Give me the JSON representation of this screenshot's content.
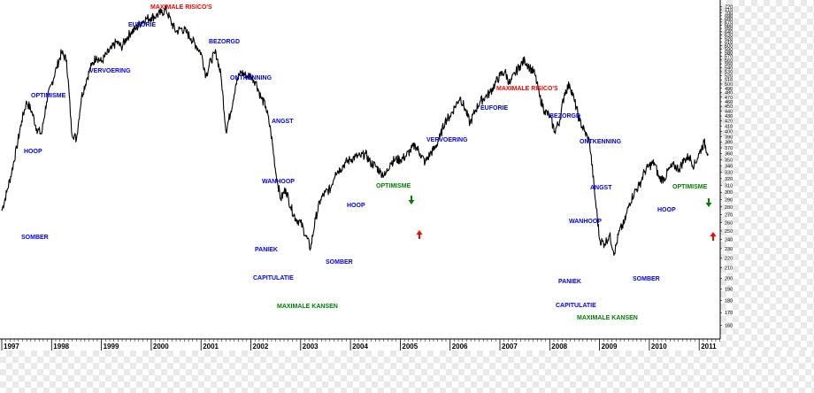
{
  "chart_data": {
    "type": "line",
    "x_axis_years": [
      "1997",
      "1998",
      "1999",
      "2000",
      "2001",
      "2002",
      "2003",
      "2004",
      "2005",
      "2006",
      "2007",
      "2008",
      "2009",
      "2010",
      "2011"
    ],
    "y_ticks": [
      160,
      170,
      180,
      190,
      200,
      210,
      220,
      230,
      240,
      250,
      260,
      270,
      280,
      290,
      300,
      310,
      320,
      330,
      340,
      350,
      360,
      370,
      380,
      390,
      400,
      410,
      420,
      430,
      440,
      450,
      460,
      470,
      480,
      490,
      500,
      510,
      520,
      530,
      540,
      550,
      560,
      570,
      580,
      590,
      600,
      610,
      620,
      630,
      640,
      650,
      660,
      670,
      680,
      690,
      700,
      710,
      720
    ],
    "ylim": [
      152,
      725
    ],
    "scale": "log",
    "series": [
      {
        "x": [
          1997.0,
          1997.1,
          1997.2,
          1997.3,
          1997.4,
          1997.5,
          1997.6,
          1997.7,
          1997.8,
          1997.9,
          1998.0,
          1998.1,
          1998.2,
          1998.3,
          1998.4,
          1998.5,
          1998.6,
          1998.7,
          1998.8,
          1998.9,
          1999.0,
          1999.1,
          1999.2,
          1999.3,
          1999.4,
          1999.5,
          1999.6,
          1999.7,
          1999.8,
          1999.9,
          2000.0,
          2000.1,
          2000.2,
          2000.3,
          2000.4,
          2000.5,
          2000.6,
          2000.7,
          2000.8,
          2000.9,
          2001.0,
          2001.1,
          2001.2,
          2001.3,
          2001.4,
          2001.5,
          2001.6,
          2001.7,
          2001.8,
          2001.9,
          2002.0,
          2002.1,
          2002.2,
          2002.3,
          2002.4,
          2002.5,
          2002.6,
          2002.7,
          2002.8,
          2002.9,
          2003.0,
          2003.1,
          2003.2,
          2003.3,
          2003.4,
          2003.5,
          2003.6,
          2003.7,
          2003.8,
          2003.9,
          2004.0,
          2004.1,
          2004.2,
          2004.3,
          2004.4,
          2004.5,
          2004.6,
          2004.7,
          2004.8,
          2004.9,
          2005.0,
          2005.1,
          2005.2,
          2005.3,
          2005.4,
          2005.5,
          2005.6,
          2005.7,
          2005.8,
          2005.9,
          2006.0,
          2006.1,
          2006.2,
          2006.3,
          2006.4,
          2006.5,
          2006.6,
          2006.7,
          2006.8,
          2006.9,
          2007.0,
          2007.1,
          2007.2,
          2007.3,
          2007.4,
          2007.5,
          2007.6,
          2007.7,
          2007.8,
          2007.9,
          2008.0,
          2008.1,
          2008.2,
          2008.3,
          2008.4,
          2008.5,
          2008.6,
          2008.7,
          2008.8,
          2008.9,
          2009.0,
          2009.1,
          2009.2,
          2009.3,
          2009.4,
          2009.5,
          2009.6,
          2009.7,
          2009.8,
          2009.9,
          2010.0,
          2010.1,
          2010.2,
          2010.3,
          2010.4,
          2010.5,
          2010.6,
          2010.7,
          2010.8,
          2010.9,
          2011.0,
          2011.1,
          2011.18
        ],
        "y": [
          275,
          300,
          330,
          370,
          420,
          460,
          440,
          405,
          395,
          460,
          500,
          540,
          580,
          560,
          400,
          385,
          470,
          510,
          545,
          570,
          555,
          575,
          590,
          610,
          595,
          620,
          640,
          650,
          670,
          680,
          685,
          690,
          700,
          710,
          670,
          640,
          650,
          640,
          620,
          600,
          580,
          520,
          560,
          580,
          520,
          400,
          440,
          500,
          530,
          520,
          520,
          505,
          470,
          450,
          400,
          330,
          290,
          305,
          280,
          265,
          260,
          245,
          230,
          265,
          290,
          300,
          305,
          330,
          335,
          345,
          350,
          355,
          355,
          360,
          345,
          340,
          330,
          325,
          345,
          350,
          350,
          355,
          365,
          375,
          360,
          345,
          360,
          370,
          390,
          420,
          430,
          450,
          470,
          445,
          415,
          440,
          460,
          470,
          480,
          500,
          520,
          530,
          500,
          525,
          545,
          560,
          540,
          525,
          470,
          440,
          430,
          400,
          420,
          480,
          500,
          460,
          420,
          400,
          380,
          300,
          240,
          235,
          245,
          225,
          250,
          260,
          285,
          300,
          310,
          330,
          340,
          345,
          320,
          320,
          335,
          340,
          335,
          350,
          355,
          340,
          360,
          380,
          360
        ]
      }
    ],
    "annotations": [
      {
        "text": "SOMBER",
        "color": "#0000ff"
      },
      {
        "text": "HOOP",
        "color": "#0000ff"
      },
      {
        "text": "OPTIMISME",
        "color": "#0000ff"
      },
      {
        "text": "VERVOERING",
        "color": "#0000ff"
      },
      {
        "text": "EUFORIE",
        "color": "#0000ff"
      },
      {
        "text": "MAXIMALE RISICO'S",
        "color": "#ff0000"
      },
      {
        "text": "BEZORGD",
        "color": "#0000ff"
      },
      {
        "text": "ONTKENNING",
        "color": "#0000ff"
      },
      {
        "text": "ANGST",
        "color": "#0000ff"
      },
      {
        "text": "WANHOOP",
        "color": "#0000ff"
      },
      {
        "text": "PANIEK",
        "color": "#0000ff"
      },
      {
        "text": "CAPITULATIE",
        "color": "#0000ff"
      },
      {
        "text": "MAXIMALE KANSEN",
        "color": "#008000"
      },
      {
        "text": "SOMBER",
        "color": "#0000ff"
      },
      {
        "text": "HOOP",
        "color": "#0000ff"
      },
      {
        "text": "OPTIMISME",
        "color": "#008000"
      },
      {
        "text": "VERVOERING",
        "color": "#0000ff"
      },
      {
        "text": "EUFORIE",
        "color": "#0000ff"
      },
      {
        "text": "MAXIMALE RISICO'S",
        "color": "#ff0000"
      },
      {
        "text": "BEZORGD",
        "color": "#0000ff"
      },
      {
        "text": "ONTKENNING",
        "color": "#0000ff"
      },
      {
        "text": "ANGST",
        "color": "#0000ff"
      },
      {
        "text": "WANHOOP",
        "color": "#0000ff"
      },
      {
        "text": "PANIEK",
        "color": "#0000ff"
      },
      {
        "text": "CAPITULATIE",
        "color": "#0000ff"
      },
      {
        "text": "MAXIMALE KANSEN",
        "color": "#008000"
      },
      {
        "text": "SOMBER",
        "color": "#0000ff"
      },
      {
        "text": "HOOP",
        "color": "#0000ff"
      },
      {
        "text": "OPTIMISME",
        "color": "#008000"
      }
    ],
    "arrows": [
      {
        "direction": "down",
        "color": "#008000"
      },
      {
        "direction": "up",
        "color": "#ff0000"
      },
      {
        "direction": "down",
        "color": "#008000"
      },
      {
        "direction": "up",
        "color": "#ff0000"
      }
    ],
    "line_color": "#000000",
    "grid": false
  }
}
